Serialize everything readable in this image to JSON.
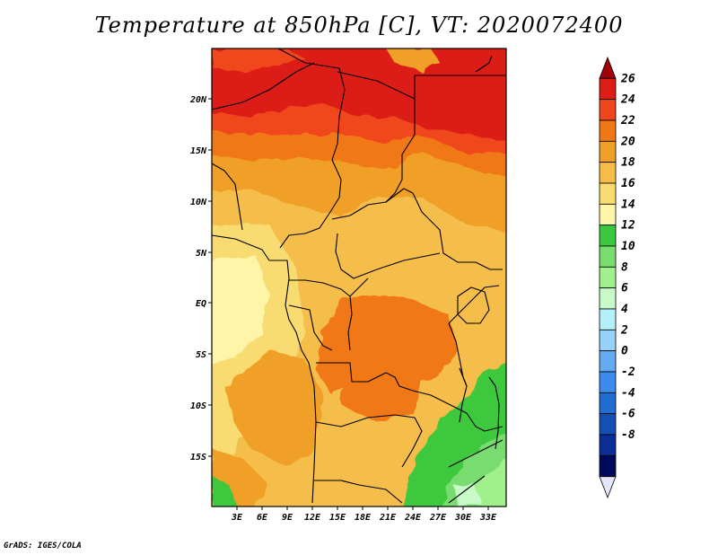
{
  "title": "Temperature at 850hPa [C], VT: 2020072400",
  "credit": "GrADS: IGES/COLA",
  "map": {
    "lat_labels": [
      "20N",
      "15N",
      "10N",
      "5N",
      "EQ",
      "5S",
      "10S",
      "15S"
    ],
    "lon_labels": [
      "3E",
      "6E",
      "9E",
      "12E",
      "15E",
      "18E",
      "21E",
      "24E",
      "27E",
      "30E",
      "33E"
    ]
  },
  "colorbar": {
    "labels": [
      "26",
      "24",
      "22",
      "20",
      "18",
      "16",
      "14",
      "12",
      "10",
      "8",
      "6",
      "4",
      "2",
      "0",
      "-2",
      "-4",
      "-6",
      "-8"
    ],
    "colors": [
      "#a0000a",
      "#dc1e14",
      "#f0461e",
      "#f07814",
      "#f0a028",
      "#f5bd48",
      "#f8dc72",
      "#fff5a8",
      "#3cc83c",
      "#78dc6e",
      "#a0f08c",
      "#c8fac8",
      "#b4f0fa",
      "#96d2fa",
      "#64aaf0",
      "#3c8cf0",
      "#1e6ed2",
      "#1450b4",
      "#0a2d96",
      "#000a5a",
      "#e6e6fa"
    ]
  }
}
